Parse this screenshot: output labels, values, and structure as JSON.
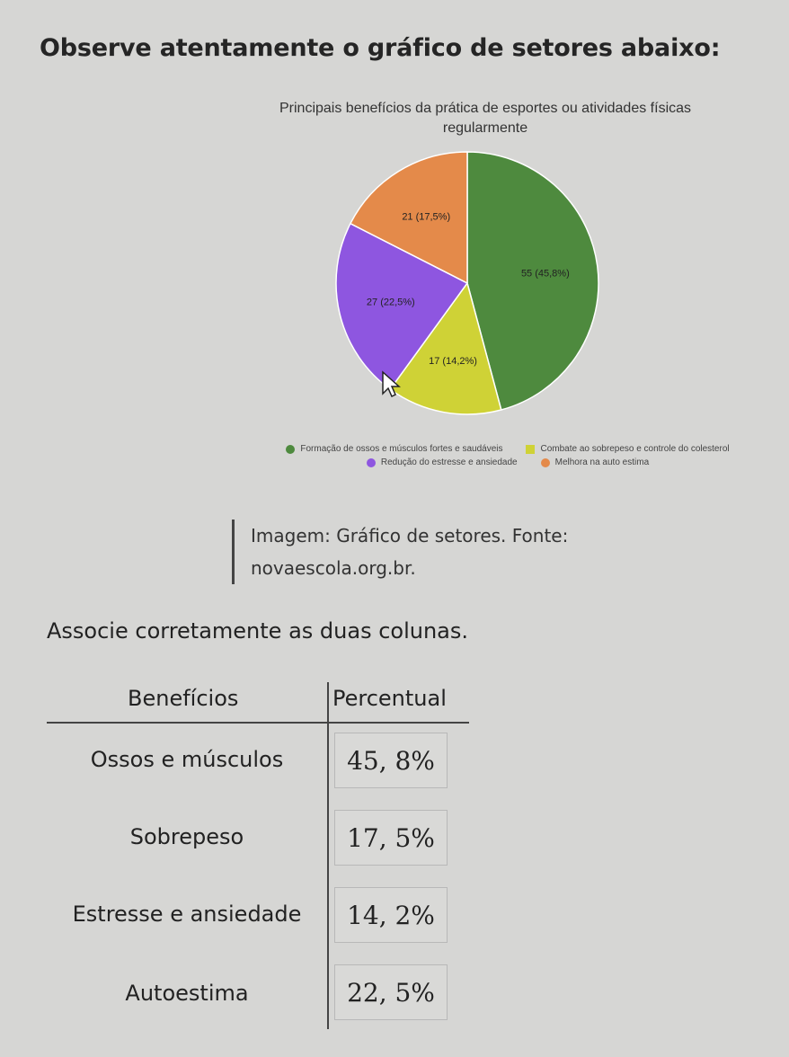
{
  "heading": "Observe atentamente o gráfico de setores abaixo:",
  "chart_data": {
    "type": "pie",
    "title_line1": "Principais benefícios da prática de esportes ou atividades físicas",
    "title_line2": "regularmente",
    "slices": [
      {
        "name": "Formação de ossos e músculos fortes e saudáveis",
        "value": 55,
        "label": "55 (45,8%)",
        "color": "#4e8a3e"
      },
      {
        "name": "Combate ao sobrepeso e controle do colesterol",
        "value": 17,
        "label": "17 (14,2%)",
        "color": "#cfd236"
      },
      {
        "name": "Redução do estresse e ansiedade",
        "value": 27,
        "label": "27 (22,5%)",
        "color": "#8e56e0"
      },
      {
        "name": "Melhora na auto estima",
        "value": 21,
        "label": "21 (17,5%)",
        "color": "#e48a4a"
      }
    ],
    "legend_placement": "bottom"
  },
  "caption": {
    "line1": "Imagem: Gráfico de setores. Fonte:",
    "line2": "novaescola.org.br."
  },
  "instruction": "Associe corretamente as duas colunas.",
  "table": {
    "headers": {
      "benefits": "Benefícios",
      "percent": "Percentual"
    },
    "labels": [
      "Ossos e músculos",
      "Sobrepeso",
      "Estresse e ansiedade",
      "Autoestima"
    ],
    "values": [
      "45, 8%",
      "17, 5%",
      "14, 2%",
      "22, 5%"
    ]
  }
}
